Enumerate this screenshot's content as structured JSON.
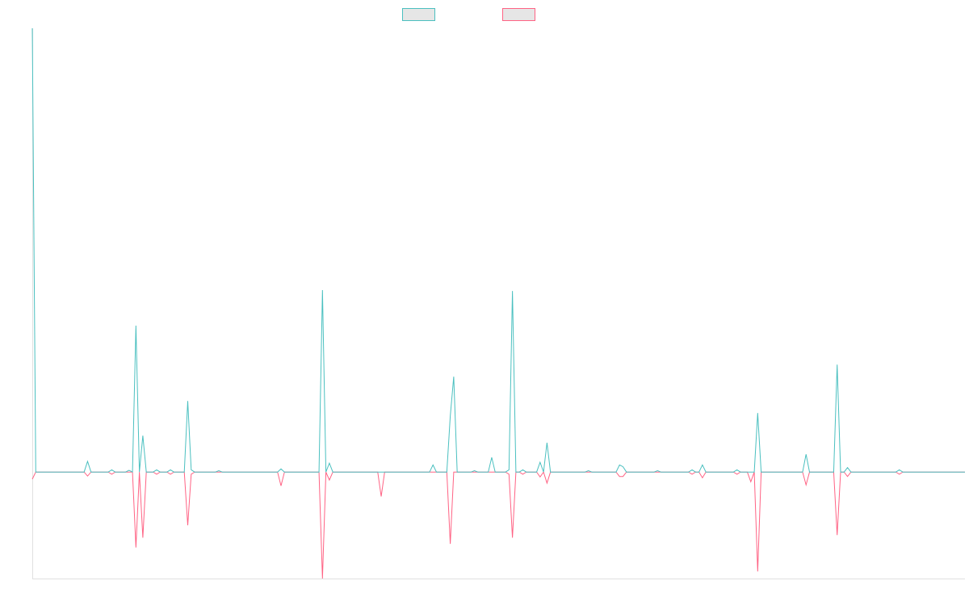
{
  "chart_data": {
    "type": "line",
    "legend": "top",
    "grid": false,
    "xlim": [
      0,
      270
    ],
    "ylim": [
      -24,
      100
    ],
    "x": [
      0,
      1,
      15,
      16,
      17,
      22,
      23,
      24,
      27,
      28,
      29,
      30,
      31,
      32,
      33,
      35,
      36,
      37,
      39,
      40,
      41,
      44,
      45,
      46,
      47,
      53,
      54,
      55,
      71,
      72,
      73,
      83,
      84,
      85,
      86,
      87,
      100,
      101,
      102,
      115,
      116,
      117,
      120,
      121,
      122,
      123,
      127,
      128,
      129,
      132,
      133,
      134,
      137,
      138,
      139,
      140,
      141,
      142,
      143,
      146,
      147,
      148,
      149,
      150,
      160,
      161,
      162,
      169,
      170,
      171,
      172,
      180,
      181,
      182,
      190,
      191,
      192,
      193,
      194,
      195,
      203,
      204,
      205,
      207,
      208,
      209,
      210,
      211,
      223,
      224,
      225,
      232,
      233,
      234,
      235,
      236,
      237,
      250,
      251,
      252,
      270
    ],
    "series": [
      {
        "color": "#4bc0c0",
        "values": [
          100,
          0,
          0,
          2.4,
          0,
          0,
          0.5,
          0,
          0,
          0.4,
          0,
          33,
          0,
          8.2,
          0,
          0,
          0.5,
          0,
          0,
          0.5,
          0,
          0,
          16,
          0.5,
          0,
          0,
          0.3,
          0,
          0,
          0.7,
          0,
          0,
          41,
          0,
          2,
          0,
          0,
          0,
          0,
          0,
          1.6,
          0,
          0,
          12.6,
          21.5,
          0,
          0,
          0.3,
          0,
          0,
          3.3,
          0,
          0,
          0.5,
          40.8,
          0,
          0,
          0.5,
          0,
          0,
          2.2,
          0,
          6.6,
          0,
          0,
          0.3,
          0,
          0,
          1.6,
          1.2,
          0,
          0,
          0.3,
          0,
          0,
          0.5,
          0,
          0,
          1.6,
          0,
          0,
          0.5,
          0,
          0,
          0,
          0,
          13.3,
          0,
          0,
          4,
          0,
          0,
          24.2,
          0,
          0,
          1,
          0,
          0,
          0.5,
          0,
          0
        ]
      },
      {
        "color": "#ff6384",
        "values": [
          -1.6,
          0,
          0,
          -0.9,
          0,
          0,
          -0.5,
          0,
          0,
          0,
          0,
          -17,
          0,
          -14.8,
          0,
          0,
          -0.5,
          0,
          0,
          -0.5,
          0,
          0,
          -12,
          -0.5,
          0,
          0,
          0,
          0,
          0,
          -3.1,
          0,
          0,
          -24,
          0,
          -1.8,
          0,
          0,
          -5.5,
          0,
          0,
          0,
          0,
          0,
          -16.2,
          0,
          0,
          0,
          0,
          0,
          0,
          0,
          0,
          0,
          -0.5,
          -14.8,
          0,
          0,
          -0.5,
          0,
          0,
          -1.1,
          0,
          -2.5,
          0,
          0,
          0,
          0,
          0,
          -1,
          -1,
          0,
          0,
          0,
          0,
          0,
          -0.5,
          0,
          0,
          -1.3,
          0,
          0,
          -0.5,
          0,
          0,
          -2.2,
          0,
          -22.4,
          0,
          0,
          -2.9,
          0,
          0,
          -14.2,
          0,
          0,
          -1,
          0,
          0,
          -0.5,
          0,
          0
        ]
      }
    ]
  }
}
